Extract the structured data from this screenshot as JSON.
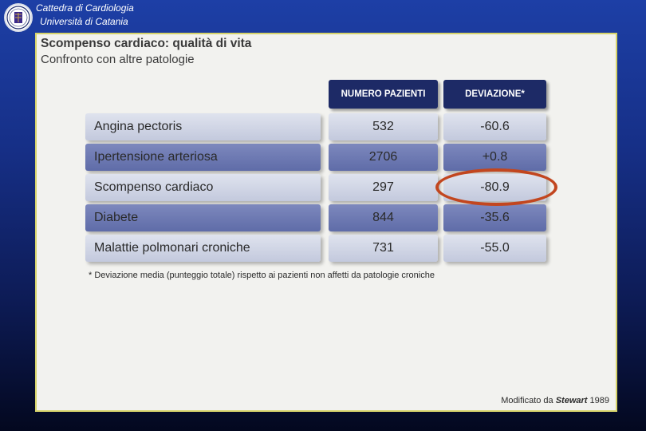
{
  "header": {
    "line1": "Cattedra di Cardiologia",
    "line2": "Università di Catania"
  },
  "slide": {
    "title": "Scompenso cardiaco: qualità di vita",
    "subtitle": "Confronto con altre patologie",
    "columns": [
      "NUMERO PAZIENTI",
      "DEVIAZIONE*"
    ],
    "rows": [
      {
        "label": "Angina pectoris",
        "patients": "532",
        "deviation": "-60.6"
      },
      {
        "label": "Ipertensione arteriosa",
        "patients": "2706",
        "deviation": "+0.8"
      },
      {
        "label": "Scompenso cardiaco",
        "patients": "297",
        "deviation": "-80.9"
      },
      {
        "label": "Diabete",
        "patients": "844",
        "deviation": "-35.6"
      },
      {
        "label": "Malattie polmonari croniche",
        "patients": "731",
        "deviation": "-55.0"
      }
    ],
    "footnote": "* Deviazione media (punteggio totale) rispetto ai pazienti non affetti da patologie croniche",
    "source_prefix": "Modificato da ",
    "source_author": "Stewart",
    "source_year": " 1989"
  },
  "colors": {
    "background": "#1d3fa6",
    "panel": "#f2f2ef",
    "header_cell": "#1d2a66",
    "row_light": "#c3c9dd",
    "row_dark": "#5f6ca8",
    "highlight": "#c2461f"
  }
}
